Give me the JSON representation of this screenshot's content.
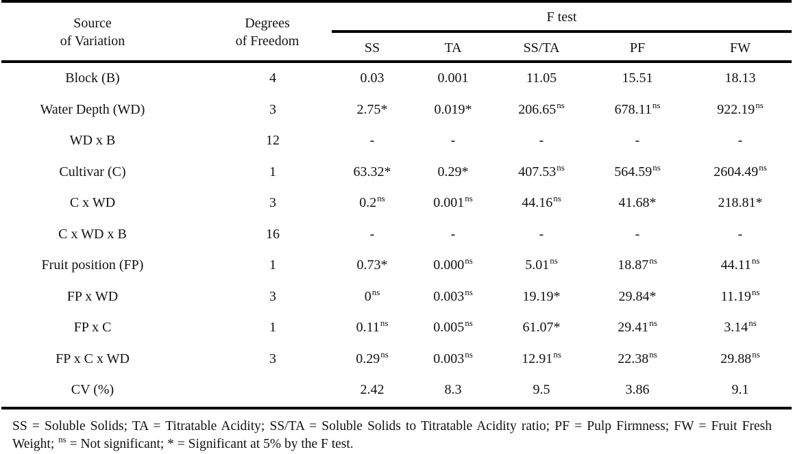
{
  "table": {
    "headers": {
      "source": [
        "Source",
        "of Variation"
      ],
      "df": [
        "Degrees",
        "of Freedom"
      ],
      "ftest": "F test",
      "columns": [
        "SS",
        "TA",
        "SS/TA",
        "PF",
        "FW"
      ]
    },
    "rows": [
      {
        "source": "Block (B)",
        "df": "4",
        "values": [
          {
            "v": "0.03",
            "s": ""
          },
          {
            "v": "0.001",
            "s": ""
          },
          {
            "v": "11.05",
            "s": ""
          },
          {
            "v": "15.51",
            "s": ""
          },
          {
            "v": "18.13",
            "s": ""
          }
        ]
      },
      {
        "source": "Water Depth (WD)",
        "df": "3",
        "values": [
          {
            "v": "2.75*",
            "s": ""
          },
          {
            "v": "0.019*",
            "s": ""
          },
          {
            "v": "206.65",
            "s": "ns"
          },
          {
            "v": "678.11",
            "s": "ns"
          },
          {
            "v": "922.19",
            "s": "ns"
          }
        ]
      },
      {
        "source": "WD x B",
        "df": "12",
        "values": [
          {
            "v": "-",
            "s": ""
          },
          {
            "v": "-",
            "s": ""
          },
          {
            "v": "-",
            "s": ""
          },
          {
            "v": "-",
            "s": ""
          },
          {
            "v": "-",
            "s": ""
          }
        ]
      },
      {
        "source": "Cultivar (C)",
        "df": "1",
        "values": [
          {
            "v": "63.32*",
            "s": ""
          },
          {
            "v": "0.29*",
            "s": ""
          },
          {
            "v": "407.53",
            "s": "ns"
          },
          {
            "v": "564.59",
            "s": "ns"
          },
          {
            "v": "2604.49",
            "s": "ns"
          }
        ]
      },
      {
        "source": "C x WD",
        "df": "3",
        "values": [
          {
            "v": "0.2",
            "s": "ns"
          },
          {
            "v": "0.001",
            "s": "ns"
          },
          {
            "v": "44.16",
            "s": "ns"
          },
          {
            "v": "41.68*",
            "s": ""
          },
          {
            "v": "218.81*",
            "s": ""
          }
        ]
      },
      {
        "source": "C x WD x B",
        "df": "16",
        "values": [
          {
            "v": "-",
            "s": ""
          },
          {
            "v": "-",
            "s": ""
          },
          {
            "v": "-",
            "s": ""
          },
          {
            "v": "-",
            "s": ""
          },
          {
            "v": "-",
            "s": ""
          }
        ]
      },
      {
        "source": "Fruit position (FP)",
        "df": "1",
        "values": [
          {
            "v": "0.73*",
            "s": ""
          },
          {
            "v": "0.000",
            "s": "ns"
          },
          {
            "v": "5.01",
            "s": "ns"
          },
          {
            "v": "18.87",
            "s": "ns"
          },
          {
            "v": "44.11",
            "s": "ns"
          }
        ]
      },
      {
        "source": "FP x WD",
        "df": "3",
        "values": [
          {
            "v": "0",
            "s": "ns"
          },
          {
            "v": "0.003",
            "s": "ns"
          },
          {
            "v": "19.19*",
            "s": ""
          },
          {
            "v": "29.84*",
            "s": ""
          },
          {
            "v": "11.19",
            "s": "ns"
          }
        ]
      },
      {
        "source": "FP x C",
        "df": "1",
        "values": [
          {
            "v": "0.11",
            "s": "ns"
          },
          {
            "v": "0.005",
            "s": "ns"
          },
          {
            "v": "61.07*",
            "s": ""
          },
          {
            "v": "29.41",
            "s": "ns"
          },
          {
            "v": "3.14",
            "s": "ns"
          }
        ]
      },
      {
        "source": "FP x C x WD",
        "df": "3",
        "values": [
          {
            "v": "0.29",
            "s": "ns"
          },
          {
            "v": "0.003",
            "s": "ns"
          },
          {
            "v": "12.91",
            "s": "ns"
          },
          {
            "v": "22.38",
            "s": "ns"
          },
          {
            "v": "29.88",
            "s": "ns"
          }
        ]
      },
      {
        "source": "CV (%)",
        "df": "",
        "values": [
          {
            "v": "2.42",
            "s": ""
          },
          {
            "v": "8.3",
            "s": ""
          },
          {
            "v": "9.5",
            "s": ""
          },
          {
            "v": "3.86",
            "s": ""
          },
          {
            "v": "9.1",
            "s": ""
          }
        ]
      }
    ]
  },
  "footnote": {
    "part1": "SS = Soluble Solids; TA = Titratable Acidity; SS/TA = Soluble Solids to Titratable Acidity ratio; PF = Pulp Firmness; FW = Fruit Fresh Weight; ",
    "sup": "ns",
    "part2": " = Not significant; * = Significant at 5% by the F test."
  }
}
